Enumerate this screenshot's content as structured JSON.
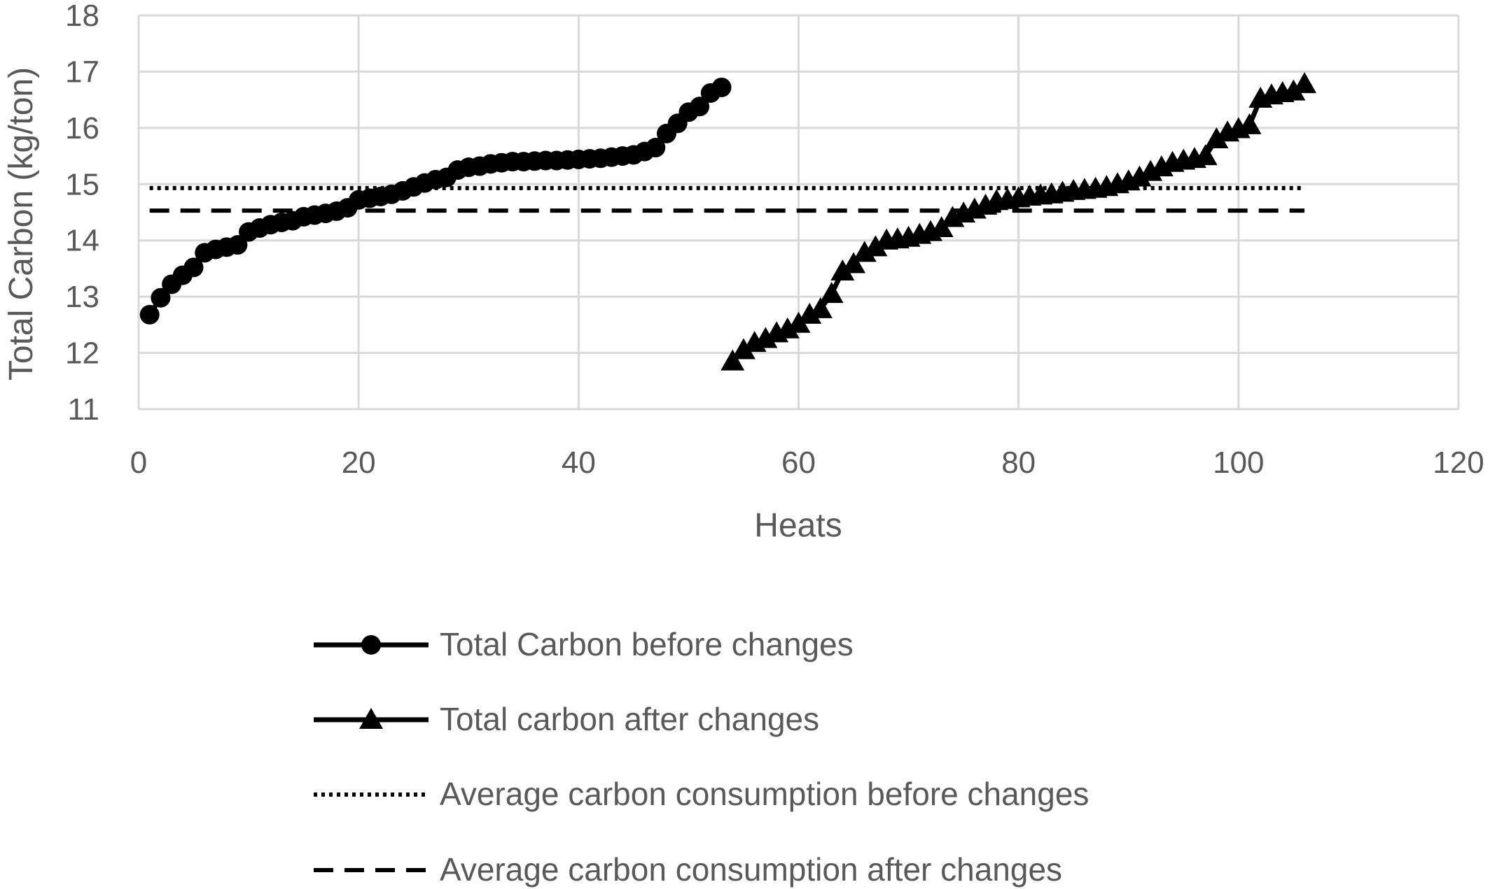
{
  "chart_data": {
    "type": "line",
    "title": "",
    "xlabel": "Heats",
    "ylabel": "Total Carbon (kg/ton)",
    "xlim": [
      0,
      120
    ],
    "ylim": [
      11,
      18
    ],
    "xticks": [
      "0",
      "20",
      "40",
      "60",
      "80",
      "100",
      "120"
    ],
    "yticks": [
      "11",
      "12",
      "13",
      "14",
      "15",
      "16",
      "17",
      "18"
    ],
    "grid": true,
    "legend_position": "bottom",
    "series": [
      {
        "name": "Total Carbon before changes",
        "marker": "circle",
        "line_style": "solid",
        "color": "#000000",
        "x": [
          1,
          2,
          3,
          4,
          5,
          6,
          7,
          8,
          9,
          10,
          11,
          12,
          13,
          14,
          15,
          16,
          17,
          18,
          19,
          20,
          21,
          22,
          23,
          24,
          25,
          26,
          27,
          28,
          29,
          30,
          31,
          32,
          33,
          34,
          35,
          36,
          37,
          38,
          39,
          40,
          41,
          42,
          43,
          44,
          45,
          46,
          47,
          48,
          49,
          50,
          51,
          52,
          53
        ],
        "values": [
          12.68,
          12.98,
          13.22,
          13.38,
          13.52,
          13.78,
          13.84,
          13.88,
          13.92,
          14.15,
          14.22,
          14.28,
          14.32,
          14.35,
          14.42,
          14.45,
          14.48,
          14.52,
          14.58,
          14.72,
          14.75,
          14.78,
          14.82,
          14.88,
          14.95,
          15.02,
          15.08,
          15.12,
          15.25,
          15.3,
          15.32,
          15.36,
          15.38,
          15.4,
          15.4,
          15.41,
          15.42,
          15.42,
          15.43,
          15.44,
          15.45,
          15.46,
          15.48,
          15.5,
          15.52,
          15.58,
          15.65,
          15.9,
          16.08,
          16.28,
          16.38,
          16.62,
          16.72
        ]
      },
      {
        "name": "Total carbon after changes",
        "marker": "triangle",
        "line_style": "solid",
        "color": "#000000",
        "x": [
          54,
          55,
          56,
          57,
          58,
          59,
          60,
          61,
          62,
          63,
          64,
          65,
          66,
          67,
          68,
          69,
          70,
          71,
          72,
          73,
          74,
          75,
          76,
          77,
          78,
          79,
          80,
          81,
          82,
          83,
          84,
          85,
          86,
          87,
          88,
          89,
          90,
          91,
          92,
          93,
          94,
          95,
          96,
          97,
          98,
          99,
          100,
          101,
          102,
          103,
          104,
          105,
          106
        ],
        "values": [
          11.85,
          12.05,
          12.18,
          12.25,
          12.35,
          12.42,
          12.52,
          12.68,
          12.78,
          13.05,
          13.45,
          13.58,
          13.78,
          13.88,
          14.0,
          14.02,
          14.05,
          14.1,
          14.15,
          14.22,
          14.4,
          14.48,
          14.55,
          14.62,
          14.7,
          14.72,
          14.75,
          14.78,
          14.8,
          14.82,
          14.85,
          14.88,
          14.9,
          14.92,
          14.95,
          15.0,
          15.05,
          15.12,
          15.22,
          15.3,
          15.38,
          15.42,
          15.45,
          15.5,
          15.8,
          15.92,
          15.98,
          16.05,
          16.52,
          16.58,
          16.62,
          16.65,
          16.78
        ]
      },
      {
        "name": "Average carbon consumption before changes",
        "marker": "none",
        "line_style": "dotted",
        "color": "#000000",
        "x": [
          1,
          106
        ],
        "values": [
          14.93,
          14.93
        ]
      },
      {
        "name": "Average carbon consumption after changes",
        "marker": "none",
        "line_style": "dashed",
        "color": "#000000",
        "x": [
          1,
          106
        ],
        "values": [
          14.53,
          14.53
        ]
      }
    ]
  },
  "colors": {
    "grid": "#d9d9d9",
    "text": "#595959",
    "series": "#000000"
  }
}
